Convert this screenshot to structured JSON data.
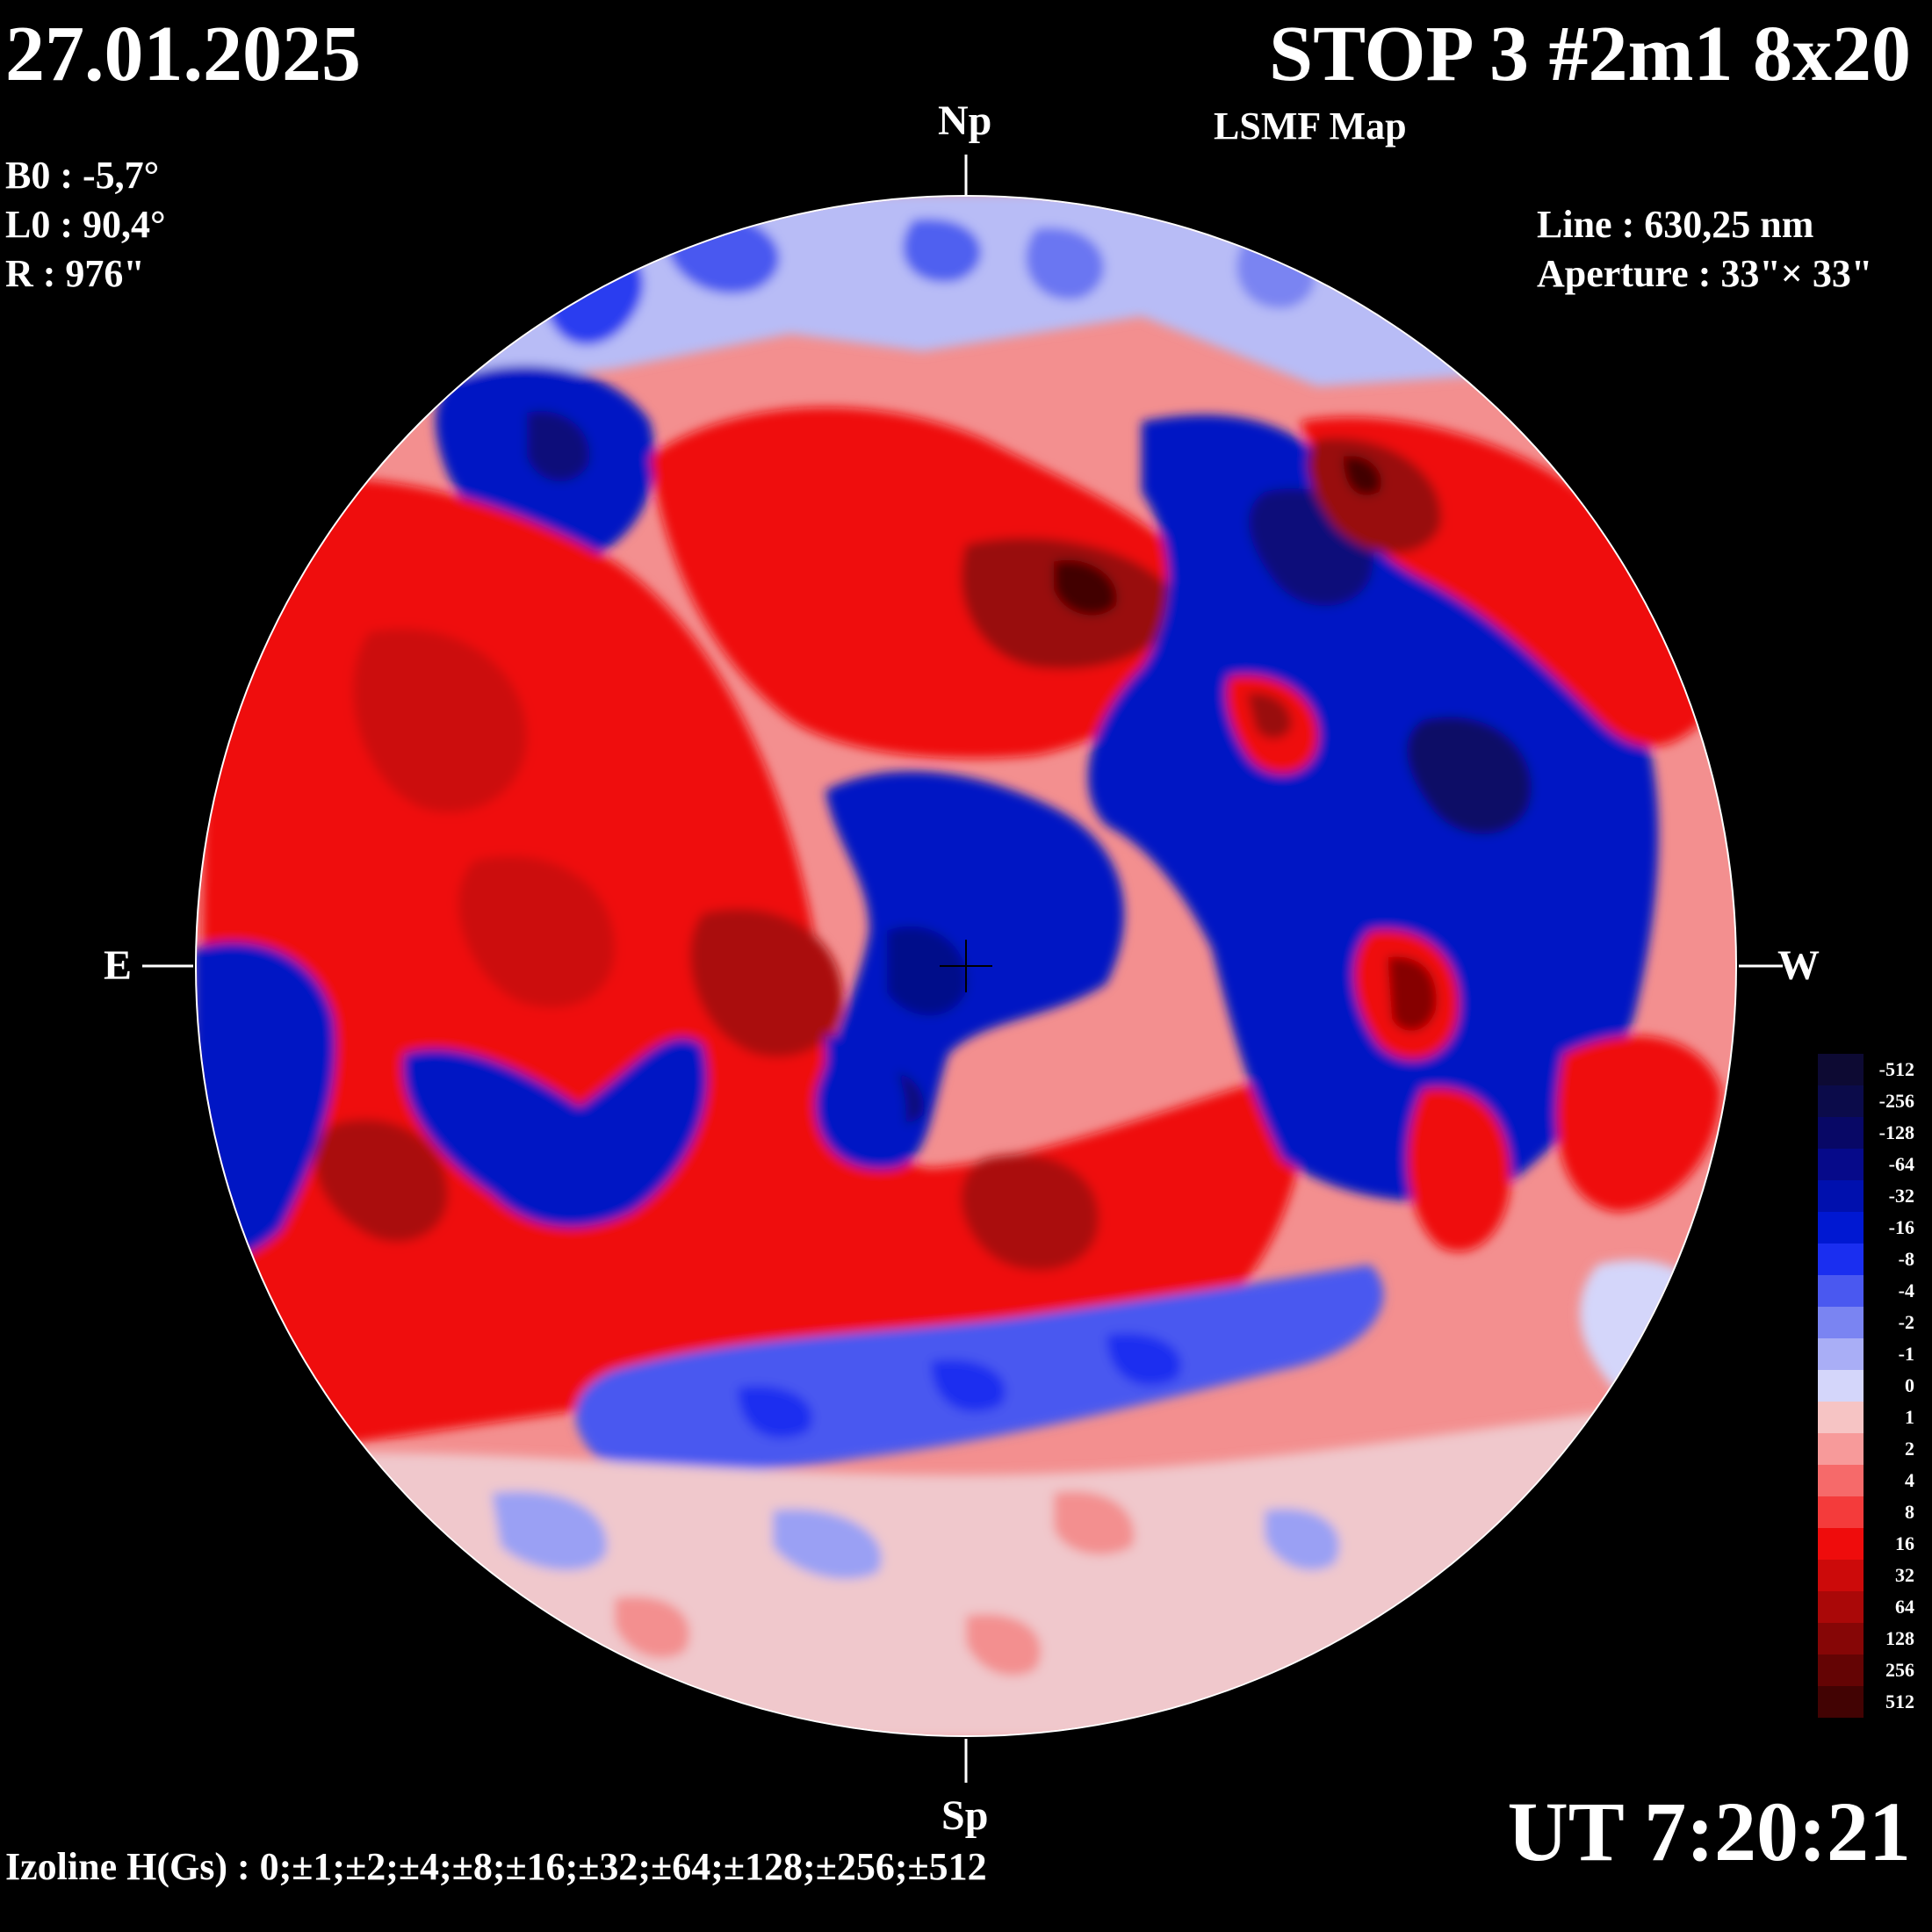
{
  "header": {
    "date": "27.01.2025",
    "title": "STOP 3 #2m1 8x20",
    "subtitle": "LSMF  Map"
  },
  "params": {
    "b0": "B0 : -5,7°",
    "l0": "L0 : 90,4°",
    "r": "R  : 976\""
  },
  "observation": {
    "line": "Line :  630,25 nm",
    "aperture": "Aperture : 33\"× 33\""
  },
  "directions": {
    "north": "Np",
    "south": "Sp",
    "east": "E",
    "west": "W"
  },
  "footer": {
    "izoline": "Izoline H(Gs) : 0;±1;±2;±4;±8;±16;±32;±64;±128;±256;±512",
    "ut": "UT 7:20:21"
  },
  "legend": [
    {
      "label": "-512",
      "color": "#0d0a33"
    },
    {
      "label": "-256",
      "color": "#0b0b4a"
    },
    {
      "label": "-128",
      "color": "#080866"
    },
    {
      "label": "-64",
      "color": "#060a8a"
    },
    {
      "label": "-32",
      "color": "#0010ae"
    },
    {
      "label": "-16",
      "color": "#0018d2"
    },
    {
      "label": "-8",
      "color": "#1a2ef0"
    },
    {
      "label": "-4",
      "color": "#4a58f0"
    },
    {
      "label": "-2",
      "color": "#7a84f2"
    },
    {
      "label": "-1",
      "color": "#a9aef6"
    },
    {
      "label": "0",
      "color": "#d4d6fa"
    },
    {
      "label": "1",
      "color": "#f6c4c4"
    },
    {
      "label": "2",
      "color": "#f79a9a"
    },
    {
      "label": "4",
      "color": "#f66a6a"
    },
    {
      "label": "8",
      "color": "#f43b3b"
    },
    {
      "label": "16",
      "color": "#ef0c0c"
    },
    {
      "label": "32",
      "color": "#cc0a0a"
    },
    {
      "label": "64",
      "color": "#aa0808"
    },
    {
      "label": "128",
      "color": "#860606"
    },
    {
      "label": "256",
      "color": "#640404"
    },
    {
      "label": "512",
      "color": "#420303"
    }
  ]
}
